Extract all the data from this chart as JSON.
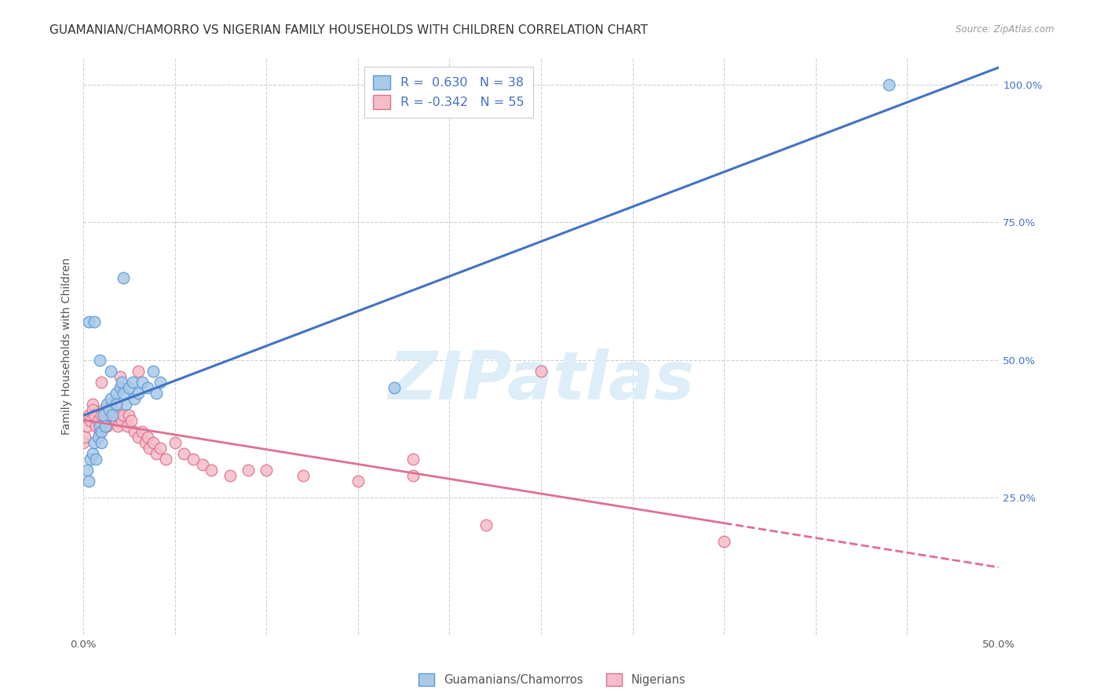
{
  "title": "GUAMANIAN/CHAMORRO VS NIGERIAN FAMILY HOUSEHOLDS WITH CHILDREN CORRELATION CHART",
  "source": "Source: ZipAtlas.com",
  "ylabel": "Family Households with Children",
  "xlim": [
    0,
    0.5
  ],
  "ylim": [
    0.0,
    1.05
  ],
  "yticks": [
    0.0,
    0.25,
    0.5,
    0.75,
    1.0
  ],
  "ytick_labels_right": [
    "",
    "25.0%",
    "50.0%",
    "75.0%",
    "100.0%"
  ],
  "legend_r1_val": "0.630",
  "legend_n1_val": "38",
  "legend_r2_val": "-0.342",
  "legend_n2_val": "55",
  "blue_fill": "#aac9e8",
  "blue_edge": "#5b9bd5",
  "pink_fill": "#f5bdc8",
  "pink_edge": "#e07090",
  "line_blue": "#4472c4",
  "line_pink": "#e07090",
  "background": "#ffffff",
  "grid_color": "#cccccc",
  "watermark_text": "ZIPatlas",
  "watermark_color": "#ddeef8",
  "guam_x": [
    0.002,
    0.003,
    0.004,
    0.005,
    0.006,
    0.007,
    0.008,
    0.009,
    0.01,
    0.01,
    0.011,
    0.012,
    0.013,
    0.014,
    0.015,
    0.016,
    0.018,
    0.02,
    0.021,
    0.022,
    0.023,
    0.025,
    0.027,
    0.028,
    0.03,
    0.032,
    0.035,
    0.038,
    0.04,
    0.042,
    0.003,
    0.006,
    0.009,
    0.015,
    0.018,
    0.022,
    0.17,
    0.44
  ],
  "guam_y": [
    0.3,
    0.28,
    0.32,
    0.33,
    0.35,
    0.32,
    0.36,
    0.38,
    0.37,
    0.35,
    0.4,
    0.38,
    0.42,
    0.41,
    0.43,
    0.4,
    0.44,
    0.45,
    0.46,
    0.44,
    0.42,
    0.45,
    0.46,
    0.43,
    0.44,
    0.46,
    0.45,
    0.48,
    0.44,
    0.46,
    0.57,
    0.57,
    0.5,
    0.48,
    0.42,
    0.65,
    0.45,
    1.0
  ],
  "nigerian_x": [
    0.0,
    0.001,
    0.002,
    0.003,
    0.004,
    0.005,
    0.005,
    0.006,
    0.007,
    0.008,
    0.009,
    0.01,
    0.011,
    0.012,
    0.013,
    0.014,
    0.015,
    0.016,
    0.017,
    0.018,
    0.019,
    0.02,
    0.021,
    0.022,
    0.024,
    0.025,
    0.026,
    0.028,
    0.03,
    0.032,
    0.034,
    0.035,
    0.036,
    0.038,
    0.04,
    0.042,
    0.045,
    0.05,
    0.055,
    0.06,
    0.065,
    0.07,
    0.08,
    0.09,
    0.1,
    0.12,
    0.15,
    0.18,
    0.22,
    0.25,
    0.01,
    0.02,
    0.03,
    0.18,
    0.35
  ],
  "nigerian_y": [
    0.35,
    0.36,
    0.38,
    0.4,
    0.39,
    0.42,
    0.41,
    0.4,
    0.38,
    0.39,
    0.37,
    0.4,
    0.41,
    0.39,
    0.38,
    0.4,
    0.42,
    0.41,
    0.4,
    0.39,
    0.38,
    0.4,
    0.39,
    0.4,
    0.38,
    0.4,
    0.39,
    0.37,
    0.36,
    0.37,
    0.35,
    0.36,
    0.34,
    0.35,
    0.33,
    0.34,
    0.32,
    0.35,
    0.33,
    0.32,
    0.31,
    0.3,
    0.29,
    0.3,
    0.3,
    0.29,
    0.28,
    0.29,
    0.2,
    0.48,
    0.46,
    0.47,
    0.48,
    0.32,
    0.17
  ],
  "title_fontsize": 11,
  "axis_fontsize": 10,
  "tick_fontsize": 9.5
}
